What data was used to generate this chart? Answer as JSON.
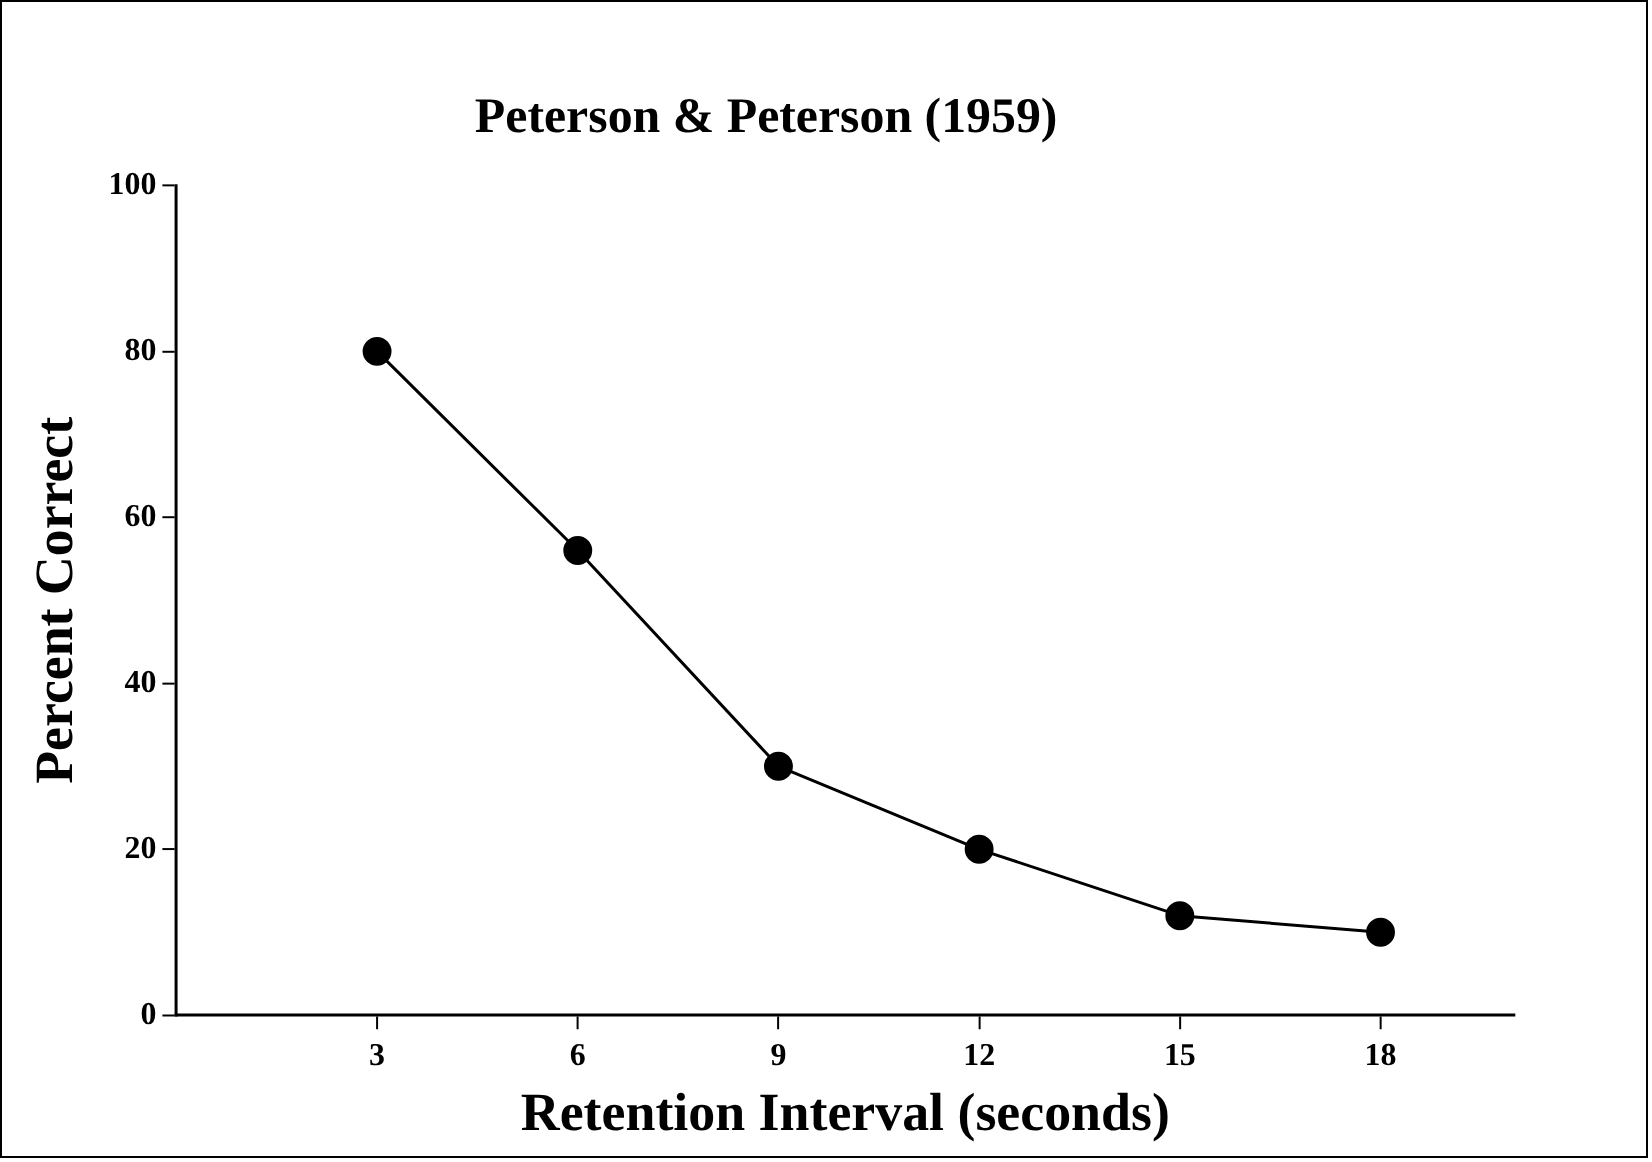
{
  "chart_data": {
    "type": "line",
    "title": "Peterson & Peterson (1959)",
    "xlabel": "Retention Interval (seconds)",
    "ylabel": "Percent Correct",
    "x": [
      3,
      6,
      9,
      12,
      15,
      18
    ],
    "series": [
      {
        "color": "#000000",
        "values": [
          80,
          56,
          30,
          20,
          12,
          10
        ]
      }
    ],
    "xlim": [
      0,
      20
    ],
    "xticks": [
      3,
      6,
      9,
      12,
      15,
      18
    ],
    "ylim": [
      0,
      100
    ],
    "yticks": [
      0,
      20,
      40,
      60,
      80,
      100
    ],
    "grid": false,
    "legend": false,
    "marker": "circle",
    "line_style": "solid"
  }
}
